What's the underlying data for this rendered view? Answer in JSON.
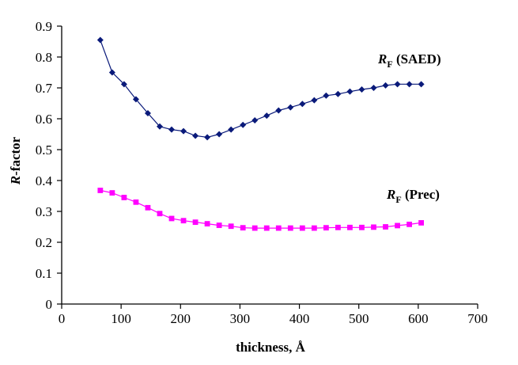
{
  "chart_data": {
    "type": "line",
    "xlabel": "thickness, Å",
    "ylabel": {
      "main": "R",
      "rest": "-factor"
    },
    "xlim": [
      0,
      700
    ],
    "ylim": [
      0,
      0.9
    ],
    "x_ticks": [
      0,
      100,
      200,
      300,
      400,
      500,
      600,
      700
    ],
    "y_ticks": [
      0,
      0.1,
      0.2,
      0.3,
      0.4,
      0.5,
      0.6,
      0.7,
      0.8,
      0.9
    ],
    "grid": false,
    "legend": "none",
    "series": [
      {
        "name": "RF (SAED)",
        "label": {
          "main": "R",
          "sub": "F",
          "rest": " (SAED)"
        },
        "color": "#0a1a7a",
        "marker": "diamond",
        "x": [
          65,
          85,
          105,
          125,
          145,
          165,
          185,
          205,
          225,
          245,
          265,
          285,
          305,
          325,
          345,
          365,
          385,
          405,
          425,
          445,
          465,
          485,
          505,
          525,
          545,
          565,
          585,
          605
        ],
        "values": [
          0.855,
          0.75,
          0.712,
          0.663,
          0.618,
          0.575,
          0.565,
          0.56,
          0.545,
          0.54,
          0.55,
          0.565,
          0.58,
          0.595,
          0.61,
          0.627,
          0.637,
          0.648,
          0.66,
          0.675,
          0.68,
          0.688,
          0.695,
          0.7,
          0.708,
          0.712,
          0.712,
          0.712
        ]
      },
      {
        "name": "RF (Prec)",
        "label": {
          "main": "R",
          "sub": "F",
          "rest": " (Prec)"
        },
        "color": "#ff00ff",
        "marker": "square",
        "x": [
          65,
          85,
          105,
          125,
          145,
          165,
          185,
          205,
          225,
          245,
          265,
          285,
          305,
          325,
          345,
          365,
          385,
          405,
          425,
          445,
          465,
          485,
          505,
          525,
          545,
          565,
          585,
          605
        ],
        "values": [
          0.368,
          0.36,
          0.345,
          0.33,
          0.312,
          0.293,
          0.277,
          0.27,
          0.265,
          0.26,
          0.255,
          0.252,
          0.247,
          0.246,
          0.246,
          0.246,
          0.246,
          0.246,
          0.246,
          0.247,
          0.248,
          0.248,
          0.248,
          0.249,
          0.25,
          0.254,
          0.258,
          0.263
        ]
      }
    ]
  }
}
